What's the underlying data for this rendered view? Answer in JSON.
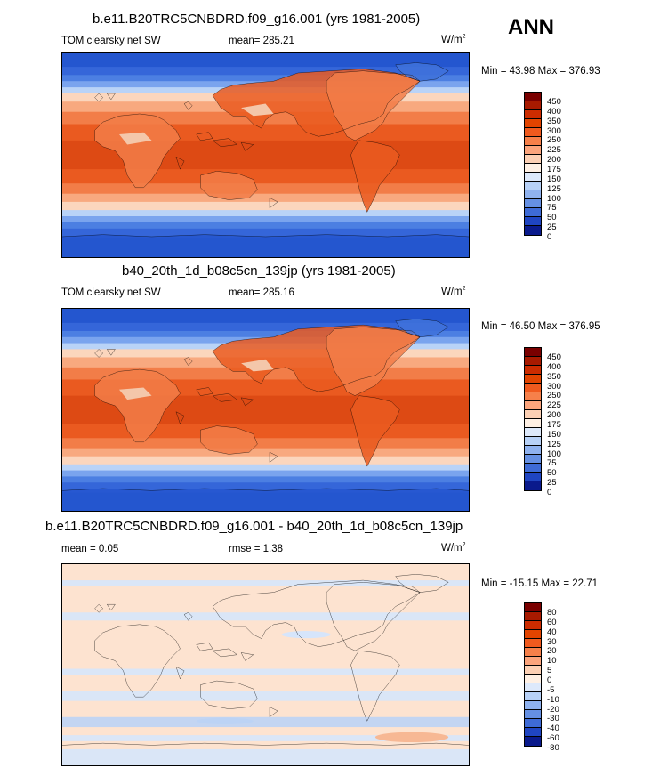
{
  "season": "ANN",
  "panels": [
    {
      "title": "b.e11.B20TRC5CNBDRD.f09_g16.001 (yrs 1981-2005)",
      "left_label": "TOM clearsky net SW",
      "center_label": "mean= 285.21",
      "units": "W/m",
      "units_sup": "2",
      "minmax": "Min =  43.98 Max = 376.93",
      "colorbar_labels": [
        "450",
        "400",
        "350",
        "300",
        "250",
        "225",
        "200",
        "175",
        "150",
        "125",
        "100",
        "75",
        "50",
        "25",
        "0"
      ]
    },
    {
      "title": "b40_20th_1d_b08c5cn_139jp (yrs 1981-2005)",
      "left_label": "TOM clearsky net SW",
      "center_label": "mean= 285.16",
      "units": "W/m",
      "units_sup": "2",
      "minmax": "Min =  46.50 Max = 376.95",
      "colorbar_labels": [
        "450",
        "400",
        "350",
        "300",
        "250",
        "225",
        "200",
        "175",
        "150",
        "125",
        "100",
        "75",
        "50",
        "25",
        "0"
      ]
    },
    {
      "title": "b.e11.B20TRC5CNBDRD.f09_g16.001 - b40_20th_1d_b08c5cn_139jp",
      "left_label": "mean =   0.05",
      "center_label": "rmse =   1.38",
      "units": "W/m",
      "units_sup": "2",
      "minmax": "Min = -15.15 Max =  22.71",
      "colorbar_labels": [
        "80",
        "60",
        "40",
        "30",
        "20",
        "10",
        "5",
        "0",
        "-5",
        "-10",
        "-20",
        "-30",
        "-40",
        "-60",
        "-80"
      ]
    }
  ],
  "colors": {
    "scale16": [
      "#7a0000",
      "#a81a00",
      "#cc2c00",
      "#e24400",
      "#f05a1e",
      "#f6804a",
      "#fba47c",
      "#fcd0b4",
      "#fef0e4",
      "#dde9fb",
      "#b7d1f7",
      "#8fb2ef",
      "#6590e3",
      "#3e6bd6",
      "#1f45c2",
      "#0a1a8c"
    ],
    "base_map": {
      "b1": "#2456cf",
      "b2": "#3566d9",
      "b3": "#4c7fe2",
      "b4": "#7aa4ee",
      "b5": "#b9d3f7",
      "b6": "#fbd6bd",
      "b7": "#f8a97f",
      "b8": "#f27d48",
      "b9": "#ea5a20",
      "b10": "#dd4a14",
      "land_dark": "#c8421a",
      "land_light": "#f4c7aa",
      "ice": "#3f72da"
    },
    "diff_map": {
      "base": "#fde3d0",
      "blue": "#d6e5fb",
      "blue2": "#bcd3f5",
      "warm": "#f7b894"
    }
  }
}
